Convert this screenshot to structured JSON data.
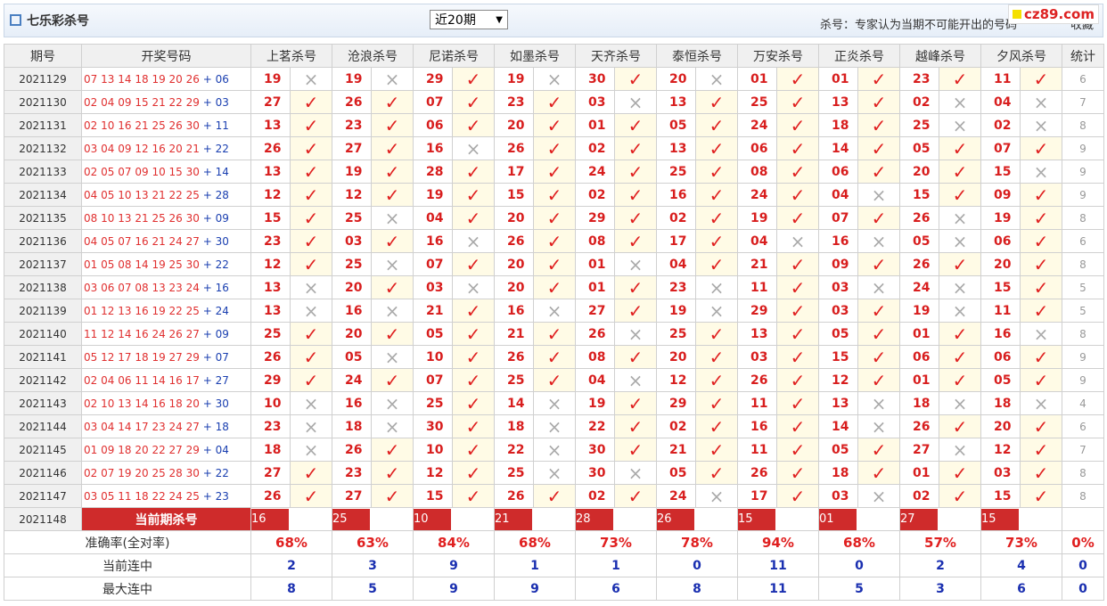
{
  "header": {
    "title": "七乐彩杀号",
    "period_select": "近20期",
    "note": "杀号：专家认为当期不可能开出的号码",
    "favorite": "收藏",
    "logo": "cz89.com"
  },
  "table": {
    "columns": [
      "期号",
      "开奖号码",
      "上茗杀号",
      "沧浪杀号",
      "尼诺杀号",
      "如墨杀号",
      "天齐杀号",
      "泰恒杀号",
      "万安杀号",
      "正炎杀号",
      "越峰杀号",
      "夕风杀号",
      "统计"
    ],
    "plus": "+",
    "rows": [
      {
        "issue": "2021129",
        "numbers": [
          "07",
          "13",
          "14",
          "18",
          "19",
          "20",
          "26"
        ],
        "special": "06",
        "picks": [
          [
            "19",
            "×"
          ],
          [
            "19",
            "×"
          ],
          [
            "29",
            "✓"
          ],
          [
            "19",
            "×"
          ],
          [
            "30",
            "✓"
          ],
          [
            "20",
            "×"
          ],
          [
            "01",
            "✓"
          ],
          [
            "01",
            "✓"
          ],
          [
            "23",
            "✓"
          ],
          [
            "11",
            "✓"
          ]
        ],
        "count": 6
      },
      {
        "issue": "2021130",
        "numbers": [
          "02",
          "04",
          "09",
          "15",
          "21",
          "22",
          "29"
        ],
        "special": "03",
        "picks": [
          [
            "27",
            "✓"
          ],
          [
            "26",
            "✓"
          ],
          [
            "07",
            "✓"
          ],
          [
            "23",
            "✓"
          ],
          [
            "03",
            "×"
          ],
          [
            "13",
            "✓"
          ],
          [
            "25",
            "✓"
          ],
          [
            "13",
            "✓"
          ],
          [
            "02",
            "×"
          ],
          [
            "04",
            "×"
          ]
        ],
        "count": 7
      },
      {
        "issue": "2021131",
        "numbers": [
          "02",
          "10",
          "16",
          "21",
          "25",
          "26",
          "30"
        ],
        "special": "11",
        "picks": [
          [
            "13",
            "✓"
          ],
          [
            "23",
            "✓"
          ],
          [
            "06",
            "✓"
          ],
          [
            "20",
            "✓"
          ],
          [
            "01",
            "✓"
          ],
          [
            "05",
            "✓"
          ],
          [
            "24",
            "✓"
          ],
          [
            "18",
            "✓"
          ],
          [
            "25",
            "×"
          ],
          [
            "02",
            "×"
          ]
        ],
        "count": 8
      },
      {
        "issue": "2021132",
        "numbers": [
          "03",
          "04",
          "09",
          "12",
          "16",
          "20",
          "21"
        ],
        "special": "22",
        "picks": [
          [
            "26",
            "✓"
          ],
          [
            "27",
            "✓"
          ],
          [
            "16",
            "×"
          ],
          [
            "26",
            "✓"
          ],
          [
            "02",
            "✓"
          ],
          [
            "13",
            "✓"
          ],
          [
            "06",
            "✓"
          ],
          [
            "14",
            "✓"
          ],
          [
            "05",
            "✓"
          ],
          [
            "07",
            "✓"
          ]
        ],
        "count": 9
      },
      {
        "issue": "2021133",
        "numbers": [
          "02",
          "05",
          "07",
          "09",
          "10",
          "15",
          "30"
        ],
        "special": "14",
        "picks": [
          [
            "13",
            "✓"
          ],
          [
            "19",
            "✓"
          ],
          [
            "28",
            "✓"
          ],
          [
            "17",
            "✓"
          ],
          [
            "24",
            "✓"
          ],
          [
            "25",
            "✓"
          ],
          [
            "08",
            "✓"
          ],
          [
            "06",
            "✓"
          ],
          [
            "20",
            "✓"
          ],
          [
            "15",
            "×"
          ]
        ],
        "count": 9
      },
      {
        "issue": "2021134",
        "numbers": [
          "04",
          "05",
          "10",
          "13",
          "21",
          "22",
          "25"
        ],
        "special": "28",
        "picks": [
          [
            "12",
            "✓"
          ],
          [
            "12",
            "✓"
          ],
          [
            "19",
            "✓"
          ],
          [
            "15",
            "✓"
          ],
          [
            "02",
            "✓"
          ],
          [
            "16",
            "✓"
          ],
          [
            "24",
            "✓"
          ],
          [
            "04",
            "×"
          ],
          [
            "15",
            "✓"
          ],
          [
            "09",
            "✓"
          ]
        ],
        "count": 9
      },
      {
        "issue": "2021135",
        "numbers": [
          "08",
          "10",
          "13",
          "21",
          "25",
          "26",
          "30"
        ],
        "special": "09",
        "picks": [
          [
            "15",
            "✓"
          ],
          [
            "25",
            "×"
          ],
          [
            "04",
            "✓"
          ],
          [
            "20",
            "✓"
          ],
          [
            "29",
            "✓"
          ],
          [
            "02",
            "✓"
          ],
          [
            "19",
            "✓"
          ],
          [
            "07",
            "✓"
          ],
          [
            "26",
            "×"
          ],
          [
            "19",
            "✓"
          ]
        ],
        "count": 8
      },
      {
        "issue": "2021136",
        "numbers": [
          "04",
          "05",
          "07",
          "16",
          "21",
          "24",
          "27"
        ],
        "special": "30",
        "picks": [
          [
            "23",
            "✓"
          ],
          [
            "03",
            "✓"
          ],
          [
            "16",
            "×"
          ],
          [
            "26",
            "✓"
          ],
          [
            "08",
            "✓"
          ],
          [
            "17",
            "✓"
          ],
          [
            "04",
            "×"
          ],
          [
            "16",
            "×"
          ],
          [
            "05",
            "×"
          ],
          [
            "06",
            "✓"
          ]
        ],
        "count": 6
      },
      {
        "issue": "2021137",
        "numbers": [
          "01",
          "05",
          "08",
          "14",
          "19",
          "25",
          "30"
        ],
        "special": "22",
        "picks": [
          [
            "12",
            "✓"
          ],
          [
            "25",
            "×"
          ],
          [
            "07",
            "✓"
          ],
          [
            "20",
            "✓"
          ],
          [
            "01",
            "×"
          ],
          [
            "04",
            "✓"
          ],
          [
            "21",
            "✓"
          ],
          [
            "09",
            "✓"
          ],
          [
            "26",
            "✓"
          ],
          [
            "20",
            "✓"
          ]
        ],
        "count": 8
      },
      {
        "issue": "2021138",
        "numbers": [
          "03",
          "06",
          "07",
          "08",
          "13",
          "23",
          "24"
        ],
        "special": "16",
        "picks": [
          [
            "13",
            "×"
          ],
          [
            "20",
            "✓"
          ],
          [
            "03",
            "×"
          ],
          [
            "20",
            "✓"
          ],
          [
            "01",
            "✓"
          ],
          [
            "23",
            "×"
          ],
          [
            "11",
            "✓"
          ],
          [
            "03",
            "×"
          ],
          [
            "24",
            "×"
          ],
          [
            "15",
            "✓"
          ]
        ],
        "count": 5
      },
      {
        "issue": "2021139",
        "numbers": [
          "01",
          "12",
          "13",
          "16",
          "19",
          "22",
          "25"
        ],
        "special": "24",
        "picks": [
          [
            "13",
            "×"
          ],
          [
            "16",
            "×"
          ],
          [
            "21",
            "✓"
          ],
          [
            "16",
            "×"
          ],
          [
            "27",
            "✓"
          ],
          [
            "19",
            "×"
          ],
          [
            "29",
            "✓"
          ],
          [
            "03",
            "✓"
          ],
          [
            "19",
            "×"
          ],
          [
            "11",
            "✓"
          ]
        ],
        "count": 5
      },
      {
        "issue": "2021140",
        "numbers": [
          "11",
          "12",
          "14",
          "16",
          "24",
          "26",
          "27"
        ],
        "special": "09",
        "picks": [
          [
            "25",
            "✓"
          ],
          [
            "20",
            "✓"
          ],
          [
            "05",
            "✓"
          ],
          [
            "21",
            "✓"
          ],
          [
            "26",
            "×"
          ],
          [
            "25",
            "✓"
          ],
          [
            "13",
            "✓"
          ],
          [
            "05",
            "✓"
          ],
          [
            "01",
            "✓"
          ],
          [
            "16",
            "×"
          ]
        ],
        "count": 8
      },
      {
        "issue": "2021141",
        "numbers": [
          "05",
          "12",
          "17",
          "18",
          "19",
          "27",
          "29"
        ],
        "special": "07",
        "picks": [
          [
            "26",
            "✓"
          ],
          [
            "05",
            "×"
          ],
          [
            "10",
            "✓"
          ],
          [
            "26",
            "✓"
          ],
          [
            "08",
            "✓"
          ],
          [
            "20",
            "✓"
          ],
          [
            "03",
            "✓"
          ],
          [
            "15",
            "✓"
          ],
          [
            "06",
            "✓"
          ],
          [
            "06",
            "✓"
          ]
        ],
        "count": 9
      },
      {
        "issue": "2021142",
        "numbers": [
          "02",
          "04",
          "06",
          "11",
          "14",
          "16",
          "17"
        ],
        "special": "27",
        "picks": [
          [
            "29",
            "✓"
          ],
          [
            "24",
            "✓"
          ],
          [
            "07",
            "✓"
          ],
          [
            "25",
            "✓"
          ],
          [
            "04",
            "×"
          ],
          [
            "12",
            "✓"
          ],
          [
            "26",
            "✓"
          ],
          [
            "12",
            "✓"
          ],
          [
            "01",
            "✓"
          ],
          [
            "05",
            "✓"
          ]
        ],
        "count": 9
      },
      {
        "issue": "2021143",
        "numbers": [
          "02",
          "10",
          "13",
          "14",
          "16",
          "18",
          "20"
        ],
        "special": "30",
        "picks": [
          [
            "10",
            "×"
          ],
          [
            "16",
            "×"
          ],
          [
            "25",
            "✓"
          ],
          [
            "14",
            "×"
          ],
          [
            "19",
            "✓"
          ],
          [
            "29",
            "✓"
          ],
          [
            "11",
            "✓"
          ],
          [
            "13",
            "×"
          ],
          [
            "18",
            "×"
          ],
          [
            "18",
            "×"
          ]
        ],
        "count": 4
      },
      {
        "issue": "2021144",
        "numbers": [
          "03",
          "04",
          "14",
          "17",
          "23",
          "24",
          "27"
        ],
        "special": "18",
        "picks": [
          [
            "23",
            "×"
          ],
          [
            "18",
            "×"
          ],
          [
            "30",
            "✓"
          ],
          [
            "18",
            "×"
          ],
          [
            "22",
            "✓"
          ],
          [
            "02",
            "✓"
          ],
          [
            "16",
            "✓"
          ],
          [
            "14",
            "×"
          ],
          [
            "26",
            "✓"
          ],
          [
            "20",
            "✓"
          ]
        ],
        "count": 6
      },
      {
        "issue": "2021145",
        "numbers": [
          "01",
          "09",
          "18",
          "20",
          "22",
          "27",
          "29"
        ],
        "special": "04",
        "picks": [
          [
            "18",
            "×"
          ],
          [
            "26",
            "✓"
          ],
          [
            "10",
            "✓"
          ],
          [
            "22",
            "×"
          ],
          [
            "30",
            "✓"
          ],
          [
            "21",
            "✓"
          ],
          [
            "11",
            "✓"
          ],
          [
            "05",
            "✓"
          ],
          [
            "27",
            "×"
          ],
          [
            "12",
            "✓"
          ]
        ],
        "count": 7
      },
      {
        "issue": "2021146",
        "numbers": [
          "02",
          "07",
          "19",
          "20",
          "25",
          "28",
          "30"
        ],
        "special": "22",
        "picks": [
          [
            "27",
            "✓"
          ],
          [
            "23",
            "✓"
          ],
          [
            "12",
            "✓"
          ],
          [
            "25",
            "×"
          ],
          [
            "30",
            "×"
          ],
          [
            "05",
            "✓"
          ],
          [
            "26",
            "✓"
          ],
          [
            "18",
            "✓"
          ],
          [
            "01",
            "✓"
          ],
          [
            "03",
            "✓"
          ]
        ],
        "count": 8
      },
      {
        "issue": "2021147",
        "numbers": [
          "03",
          "05",
          "11",
          "18",
          "22",
          "24",
          "25"
        ],
        "special": "23",
        "picks": [
          [
            "26",
            "✓"
          ],
          [
            "27",
            "✓"
          ],
          [
            "15",
            "✓"
          ],
          [
            "26",
            "✓"
          ],
          [
            "02",
            "✓"
          ],
          [
            "24",
            "×"
          ],
          [
            "17",
            "✓"
          ],
          [
            "03",
            "×"
          ],
          [
            "02",
            "✓"
          ],
          [
            "15",
            "✓"
          ]
        ],
        "count": 8
      }
    ],
    "current": {
      "issue": "2021148",
      "label": "当前期杀号",
      "picks": [
        "16",
        "25",
        "10",
        "21",
        "28",
        "26",
        "15",
        "01",
        "27",
        "15"
      ]
    },
    "summary": [
      {
        "label": "准确率(全对率)",
        "values": [
          "68%",
          "63%",
          "84%",
          "68%",
          "73%",
          "78%",
          "94%",
          "68%",
          "57%",
          "73%"
        ],
        "total": "0%"
      },
      {
        "label": "当前连中",
        "values": [
          2,
          3,
          9,
          1,
          1,
          0,
          11,
          0,
          2,
          4
        ],
        "total": 0
      },
      {
        "label": "最大连中",
        "values": [
          8,
          5,
          9,
          9,
          6,
          8,
          11,
          5,
          3,
          6
        ],
        "total": 0
      }
    ]
  }
}
